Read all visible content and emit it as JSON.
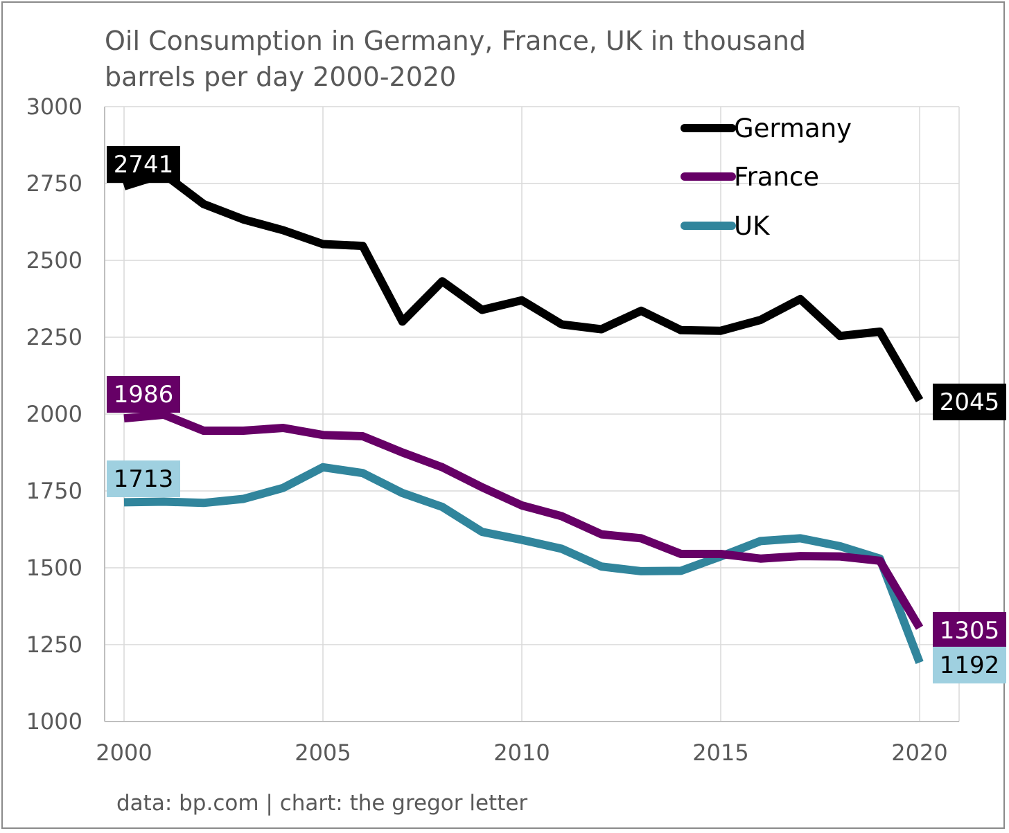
{
  "chart_data": {
    "type": "line",
    "title_lines": [
      "Oil Consumption in Germany, France, UK in thousand",
      "barrels per day 2000-2020"
    ],
    "source": "data: bp.com | chart: the gregor letter",
    "xlabel": "",
    "ylabel": "",
    "x": [
      2000,
      2001,
      2002,
      2003,
      2004,
      2005,
      2006,
      2007,
      2008,
      2009,
      2010,
      2011,
      2012,
      2013,
      2014,
      2015,
      2016,
      2017,
      2018,
      2019,
      2020
    ],
    "xlim": [
      2000,
      2020
    ],
    "ylim": [
      1000,
      3000
    ],
    "x_ticks": [
      "2000",
      "2005",
      "2010",
      "2015",
      "2020"
    ],
    "y_ticks": [
      "1000",
      "1250",
      "1500",
      "1750",
      "2000",
      "2250",
      "2500",
      "2750",
      "3000"
    ],
    "grid": true,
    "legend_position": "top-right",
    "series": [
      {
        "name": "Germany",
        "color": "#000000",
        "label_text_color": "#ffffff",
        "values": [
          2741,
          2781,
          2683,
          2633,
          2598,
          2553,
          2547,
          2301,
          2432,
          2339,
          2370,
          2292,
          2276,
          2336,
          2273,
          2271,
          2306,
          2374,
          2254,
          2268,
          2045
        ],
        "start_label": "2741",
        "end_label": "2045"
      },
      {
        "name": "France",
        "color": "#660066",
        "label_text_color": "#ffffff",
        "values": [
          1986,
          1998,
          1946,
          1946,
          1955,
          1932,
          1928,
          1875,
          1827,
          1762,
          1703,
          1668,
          1609,
          1596,
          1545,
          1545,
          1530,
          1538,
          1537,
          1523,
          1305
        ],
        "start_label": "1986",
        "end_label": "1305"
      },
      {
        "name": "UK",
        "color": "#31859c",
        "label_bg": "#9fd0e0",
        "label_text_color": "#000000",
        "values": [
          1713,
          1715,
          1711,
          1724,
          1760,
          1827,
          1808,
          1743,
          1698,
          1617,
          1591,
          1562,
          1504,
          1489,
          1490,
          1537,
          1587,
          1596,
          1570,
          1530,
          1192
        ],
        "start_label": "1713",
        "end_label": "1192"
      }
    ]
  }
}
